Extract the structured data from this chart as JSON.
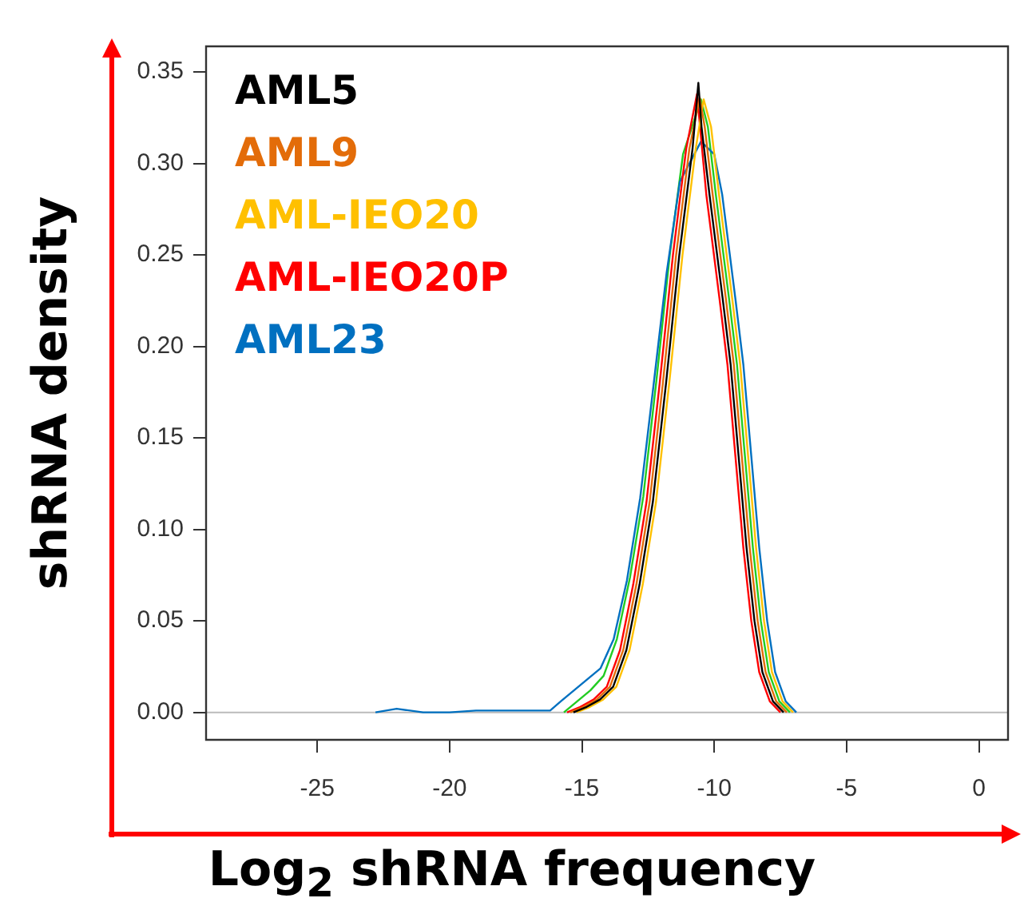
{
  "chart_data": {
    "type": "line",
    "xlabel": "Log$_{2}$ shRNA frequency",
    "ylabel": "shRNA density",
    "xlim": [
      -29.2,
      1.1
    ],
    "xticks": [
      -25,
      -20,
      -15,
      -10,
      -5,
      0
    ],
    "ylim": [
      -0.015,
      0.364
    ],
    "yticks": [
      {
        "value": 0,
        "label": "0.00"
      },
      {
        "value": 0.05,
        "label": "0.05"
      },
      {
        "value": 0.1,
        "label": "0.10"
      },
      {
        "value": 0.15,
        "label": "0.15"
      },
      {
        "value": 0.2,
        "label": "0.20"
      },
      {
        "value": 0.25,
        "label": "0.25"
      },
      {
        "value": 0.3,
        "label": "0.30"
      },
      {
        "value": 0.35,
        "label": "0.35"
      }
    ],
    "grid": false,
    "legend": "top left",
    "marker": "none",
    "line_style": "solid",
    "ref_lines": [
      {
        "axis": "y",
        "value": 0,
        "color": "#bbbbbb"
      }
    ],
    "series": [
      {
        "name": "AML5",
        "color": "#000000",
        "x": [
          -15.32,
          -14.82,
          -14.32,
          -13.82,
          -13.32,
          -12.82,
          -12.32,
          -11.82,
          -11.32,
          -10.82,
          -10.6,
          -10.48,
          -10.18,
          -9.68,
          -9.38,
          -9.08,
          -8.78,
          -8.48,
          -8.18,
          -7.78,
          -7.38
        ],
        "values": [
          0,
          0.003,
          0.007,
          0.014,
          0.034,
          0.07,
          0.115,
          0.18,
          0.25,
          0.308,
          0.344,
          0.32,
          0.283,
          0.226,
          0.19,
          0.14,
          0.09,
          0.05,
          0.022,
          0.006,
          0
        ]
      },
      {
        "name": "AML9",
        "color": "#e36c09",
        "x": [
          -15.44,
          -14.94,
          -14.44,
          -13.94,
          -13.44,
          -12.94,
          -12.44,
          -11.94,
          -11.44,
          -10.94,
          -10.55,
          -10.36,
          -10.06,
          -9.56,
          -9.26,
          -8.96,
          -8.66,
          -8.36,
          -8.06,
          -7.66,
          -7.26
        ],
        "values": [
          0,
          0.003,
          0.007,
          0.014,
          0.034,
          0.07,
          0.115,
          0.18,
          0.25,
          0.308,
          0.336,
          0.32,
          0.283,
          0.226,
          0.19,
          0.14,
          0.09,
          0.05,
          0.022,
          0.006,
          0
        ]
      },
      {
        "name": "AML-IEO20",
        "color": "#ffc000",
        "x": [
          -15.2,
          -14.7,
          -14.2,
          -13.7,
          -13.2,
          -12.7,
          -12.2,
          -11.7,
          -11.2,
          -10.7,
          -10.4,
          -10.12,
          -9.82,
          -9.32,
          -9.02,
          -8.72,
          -8.42,
          -8.12,
          -7.82,
          -7.42,
          -7.02
        ],
        "values": [
          0,
          0.003,
          0.007,
          0.014,
          0.034,
          0.07,
          0.115,
          0.18,
          0.25,
          0.308,
          0.335,
          0.32,
          0.283,
          0.226,
          0.19,
          0.14,
          0.09,
          0.05,
          0.022,
          0.006,
          0
        ]
      },
      {
        "name": "AML-IEO20P",
        "color": "#ff0000",
        "x": [
          -15.56,
          -15.06,
          -14.56,
          -14.06,
          -13.56,
          -13.06,
          -12.56,
          -12.06,
          -11.56,
          -11.06,
          -10.65,
          -10.3,
          -9.8,
          -9.5,
          -9.2,
          -8.9,
          -8.6,
          -8.3,
          -7.9,
          -7.5
        ],
        "values": [
          0,
          0.003,
          0.007,
          0.014,
          0.034,
          0.07,
          0.115,
          0.18,
          0.25,
          0.308,
          0.338,
          0.283,
          0.226,
          0.19,
          0.14,
          0.09,
          0.05,
          0.022,
          0.006,
          0
        ]
      },
      {
        "name": "AML23",
        "color": "#0070c0",
        "x": [
          -22.8,
          -22,
          -21,
          -20,
          -19,
          -18,
          -17,
          -16.2,
          -15.8,
          -15.3,
          -14.8,
          -14.3,
          -13.8,
          -13.3,
          -12.8,
          -12.3,
          -11.8,
          -11.3,
          -10.5,
          -10,
          -9.7,
          -9.2,
          -8.9,
          -8.6,
          -8.3,
          -8,
          -7.7,
          -7.3,
          -6.9
        ],
        "values": [
          0,
          0.002,
          0,
          0,
          0.001,
          0.001,
          0.001,
          0.001,
          0.006,
          0.012,
          0.018,
          0.024,
          0.04,
          0.072,
          0.117,
          0.178,
          0.24,
          0.29,
          0.312,
          0.305,
          0.283,
          0.226,
          0.19,
          0.14,
          0.09,
          0.05,
          0.022,
          0.006,
          0
        ]
      },
      {
        "color": "#22cc22",
        "x": [
          -15.68,
          -15.18,
          -14.68,
          -14.18,
          -13.68,
          -13.18,
          -12.68,
          -12.18,
          -11.68,
          -11.18,
          -10.5,
          -10.24,
          -9.94,
          -9.44,
          -9.14,
          -8.84,
          -8.54,
          -8.24,
          -7.94,
          -7.54,
          -7.14
        ],
        "values": [
          0,
          0.006,
          0.012,
          0.02,
          0.04,
          0.074,
          0.118,
          0.182,
          0.25,
          0.305,
          0.335,
          0.32,
          0.283,
          0.226,
          0.19,
          0.14,
          0.09,
          0.05,
          0.022,
          0.006,
          0
        ]
      }
    ]
  }
}
